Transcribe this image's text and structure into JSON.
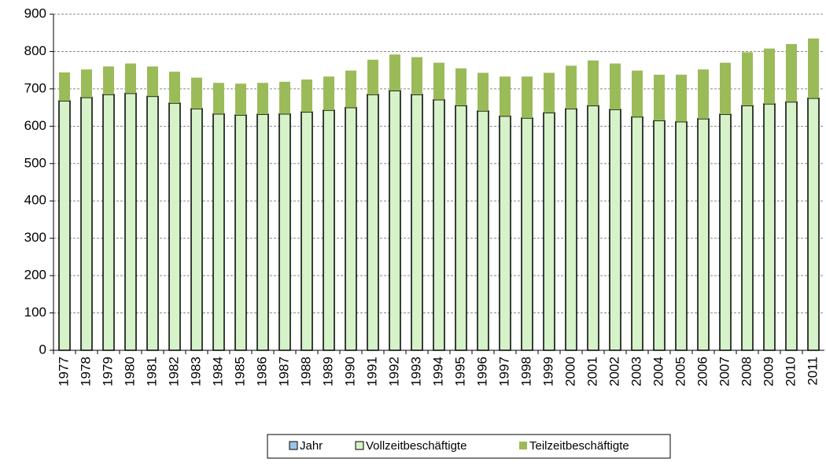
{
  "chart_data": {
    "type": "stacked_bar",
    "categories": [
      "1977",
      "1978",
      "1979",
      "1980",
      "1981",
      "1982",
      "1983",
      "1984",
      "1985",
      "1986",
      "1987",
      "1988",
      "1989",
      "1990",
      "1991",
      "1992",
      "1993",
      "1994",
      "1995",
      "1996",
      "1997",
      "1998",
      "1999",
      "2000",
      "2001",
      "2002",
      "2003",
      "2004",
      "2005",
      "2006",
      "2007",
      "2008",
      "2009",
      "2010",
      "2011"
    ],
    "series": [
      {
        "name": "Jahr",
        "color": "#9dc3e6",
        "values": [
          null,
          null,
          null,
          null,
          null,
          null,
          null,
          null,
          null,
          null,
          null,
          null,
          null,
          null,
          null,
          null,
          null,
          null,
          null,
          null,
          null,
          null,
          null,
          null,
          null,
          null,
          null,
          null,
          null,
          null,
          null,
          null,
          null,
          null,
          null
        ]
      },
      {
        "name": "Vollzeitbeschäftigte",
        "color": "#d5f2c8",
        "values": [
          668,
          677,
          685,
          688,
          680,
          662,
          647,
          633,
          630,
          632,
          633,
          638,
          643,
          650,
          685,
          695,
          685,
          671,
          655,
          641,
          627,
          622,
          636,
          647,
          655,
          645,
          625,
          615,
          612,
          620,
          632,
          655,
          660,
          665,
          675
        ]
      },
      {
        "name": "Teilzeitbeschäftigte",
        "color": "#9bbb59",
        "values": [
          76,
          75,
          75,
          80,
          80,
          84,
          83,
          83,
          84,
          84,
          86,
          87,
          90,
          99,
          93,
          97,
          100,
          99,
          100,
          102,
          106,
          111,
          107,
          115,
          121,
          123,
          124,
          123,
          126,
          132,
          138,
          143,
          148,
          155,
          160
        ]
      }
    ],
    "ylim": [
      0,
      900
    ],
    "yticks": [
      0,
      100,
      200,
      300,
      400,
      500,
      600,
      700,
      800,
      900
    ],
    "grid": true,
    "legend": "bottom"
  }
}
